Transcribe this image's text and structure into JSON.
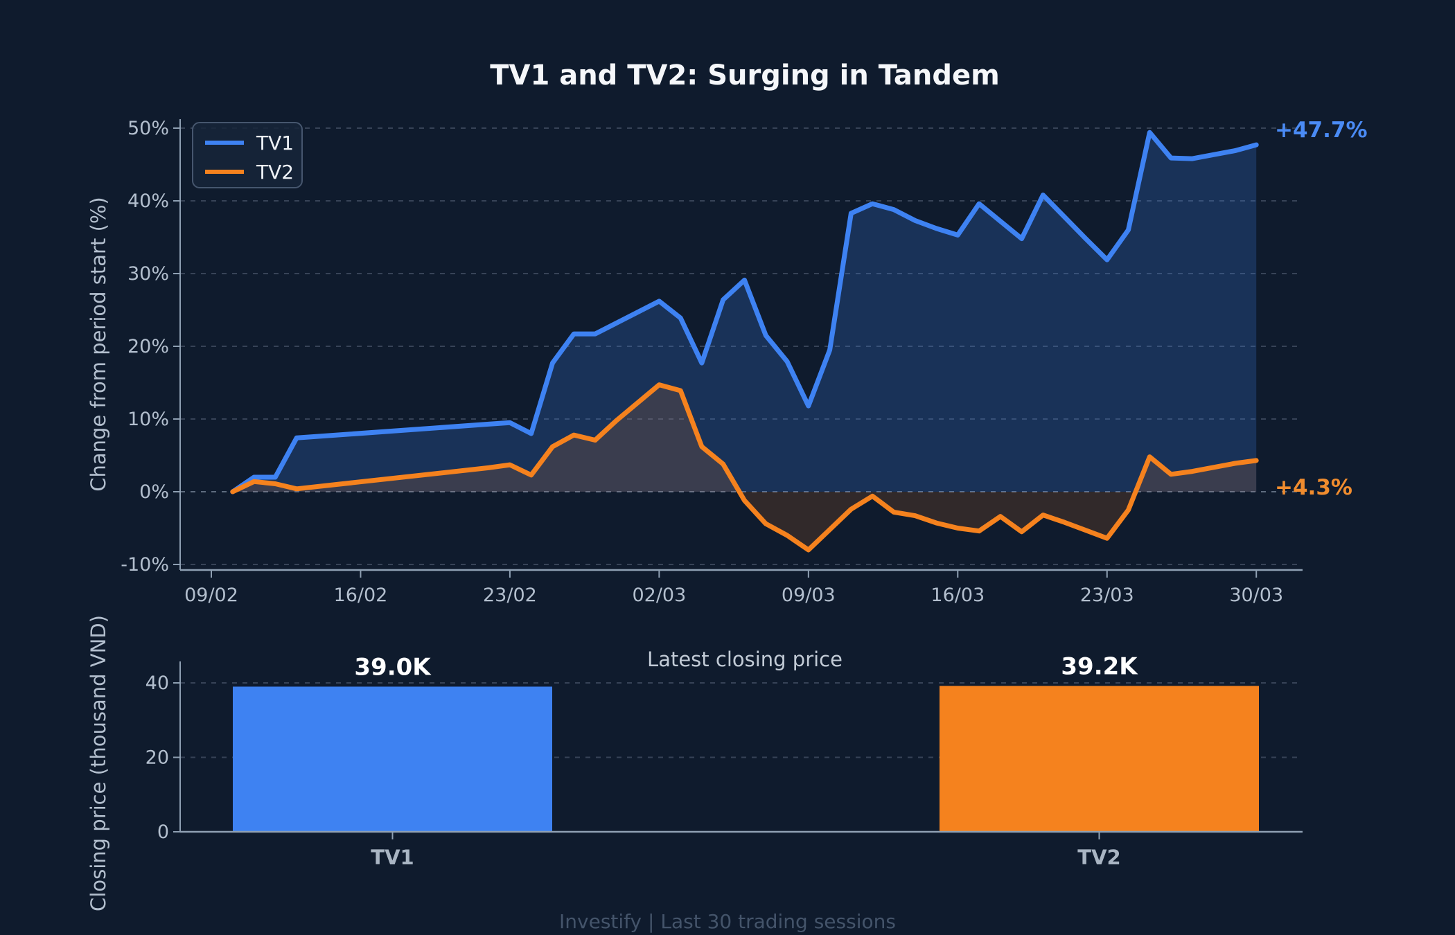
{
  "page": {
    "title": "TV1 and TV2: Surging in Tandem",
    "footer": "Investify  |  Last 30 trading sessions",
    "background": "#0f1b2d"
  },
  "colors": {
    "tv1": "#3e82f2",
    "tv2": "#f5821e",
    "tv1_fill": "rgba(62,130,242,0.22)",
    "tv2_fill": "rgba(245,130,30,0.15)",
    "grid": "rgba(148,163,184,0.30)",
    "zero_line": "rgba(160,175,195,0.55)",
    "axis": "#8fa0b3",
    "tick_text": "#b3bfce",
    "end_label_tv1": "#4a8bf5",
    "end_label_tv2": "#f08c2e",
    "bar_tv1": "#3e82f2",
    "bar_tv2": "#f5821e"
  },
  "legend": {
    "items": [
      {
        "label": "TV1"
      },
      {
        "label": "TV2"
      }
    ]
  },
  "chart_data": [
    {
      "type": "line",
      "ylabel": "Change from period start (%)",
      "yticks": [
        -10,
        0,
        10,
        20,
        30,
        40,
        50
      ],
      "ylim": [
        -13,
        53
      ],
      "y_tick_suffix": "%",
      "grid": true,
      "legend_position": "top-left",
      "xticks": {
        "labels": [
          "09/02",
          "16/02",
          "23/02",
          "02/03",
          "09/03",
          "16/03",
          "23/03",
          "30/03"
        ],
        "days": [
          0,
          7,
          14,
          21,
          28,
          35,
          42,
          49
        ]
      },
      "series": [
        {
          "name": "TV1",
          "end_label": "+47.7%",
          "points": [
            [
              1,
              0.0
            ],
            [
              2,
              2.0
            ],
            [
              3,
              2.0
            ],
            [
              4,
              7.4
            ],
            [
              13,
              9.3
            ],
            [
              14,
              9.5
            ],
            [
              15,
              8.0
            ],
            [
              16,
              17.7
            ],
            [
              17,
              21.7
            ],
            [
              18,
              21.7
            ],
            [
              19,
              23.2
            ],
            [
              21,
              26.2
            ],
            [
              22,
              23.9
            ],
            [
              23,
              17.7
            ],
            [
              24,
              26.4
            ],
            [
              25,
              29.1
            ],
            [
              26,
              21.5
            ],
            [
              27,
              17.9
            ],
            [
              28,
              11.8
            ],
            [
              29,
              19.5
            ],
            [
              30,
              38.3
            ],
            [
              31,
              39.6
            ],
            [
              32,
              38.8
            ],
            [
              33,
              37.3
            ],
            [
              34,
              36.2
            ],
            [
              35,
              35.3
            ],
            [
              36,
              39.6
            ],
            [
              37,
              37.2
            ],
            [
              38,
              34.8
            ],
            [
              39,
              40.8
            ],
            [
              40,
              37.8
            ],
            [
              41,
              34.8
            ],
            [
              42,
              31.9
            ],
            [
              43,
              36.0
            ],
            [
              44,
              49.4
            ],
            [
              45,
              45.9
            ],
            [
              46,
              45.8
            ],
            [
              48,
              46.9
            ],
            [
              49,
              47.7
            ]
          ]
        },
        {
          "name": "TV2",
          "end_label": "+4.3%",
          "points": [
            [
              1,
              0.0
            ],
            [
              2,
              1.4
            ],
            [
              3,
              1.1
            ],
            [
              4,
              0.4
            ],
            [
              13,
              3.3
            ],
            [
              14,
              3.7
            ],
            [
              15,
              2.3
            ],
            [
              16,
              6.2
            ],
            [
              17,
              7.8
            ],
            [
              18,
              7.1
            ],
            [
              19,
              9.8
            ],
            [
              21,
              14.7
            ],
            [
              22,
              13.9
            ],
            [
              23,
              6.2
            ],
            [
              24,
              3.8
            ],
            [
              25,
              -1.2
            ],
            [
              26,
              -4.4
            ],
            [
              27,
              -6.0
            ],
            [
              28,
              -8.0
            ],
            [
              29,
              -5.2
            ],
            [
              30,
              -2.4
            ],
            [
              31,
              -0.6
            ],
            [
              32,
              -2.8
            ],
            [
              33,
              -3.3
            ],
            [
              34,
              -4.3
            ],
            [
              35,
              -5.0
            ],
            [
              36,
              -5.4
            ],
            [
              37,
              -3.4
            ],
            [
              38,
              -5.5
            ],
            [
              39,
              -3.2
            ],
            [
              40,
              -4.2
            ],
            [
              41,
              -5.3
            ],
            [
              42,
              -6.4
            ],
            [
              43,
              -2.5
            ],
            [
              44,
              4.8
            ],
            [
              45,
              2.4
            ],
            [
              46,
              2.8
            ],
            [
              48,
              3.9
            ],
            [
              49,
              4.3
            ]
          ]
        }
      ]
    },
    {
      "type": "bar",
      "title": "Latest closing price",
      "ylabel": "Closing price (thousand VND)",
      "yticks": [
        0,
        20,
        40
      ],
      "categories": [
        "TV1",
        "TV2"
      ],
      "values": [
        39.0,
        39.2
      ],
      "value_labels": [
        "39.0K",
        "39.2K"
      ]
    }
  ]
}
